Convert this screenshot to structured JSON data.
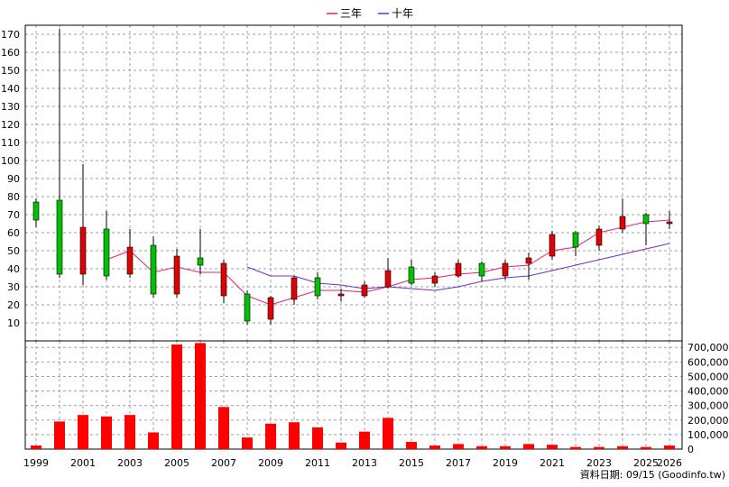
{
  "chart_data": {
    "type": "candlestick",
    "legend": [
      {
        "name": "三年",
        "color": "#e0207a"
      },
      {
        "name": "十年",
        "color": "#7030c0"
      }
    ],
    "legend_position": "top-center",
    "grid": true,
    "price_axis": {
      "min": 0,
      "max": 175,
      "ticks": [
        10,
        20,
        30,
        40,
        50,
        60,
        70,
        80,
        90,
        100,
        110,
        120,
        130,
        140,
        150,
        160,
        170
      ]
    },
    "volume_axis": {
      "min": 0,
      "max": 720000,
      "ticks": [
        "0",
        "100,000",
        "200,000",
        "300,000",
        "400,000",
        "500,000",
        "600,000",
        "700,000"
      ],
      "tick_values": [
        0,
        100000,
        200000,
        300000,
        400000,
        500000,
        600000,
        700000
      ]
    },
    "x_labels": [
      "1999",
      "2001",
      "2003",
      "2005",
      "2007",
      "2009",
      "2011",
      "2013",
      "2015",
      "2017",
      "2019",
      "2021",
      "2023",
      "2025",
      "2026"
    ],
    "candles": [
      {
        "year": "1999",
        "open": 67,
        "high": 79,
        "low": 63,
        "close": 77
      },
      {
        "year": "2000",
        "open": 37,
        "high": 173,
        "low": 35,
        "close": 78
      },
      {
        "year": "2001",
        "open": 63,
        "high": 98,
        "low": 31,
        "close": 37
      },
      {
        "year": "2002",
        "open": 36,
        "high": 72,
        "low": 34,
        "close": 62
      },
      {
        "year": "2003",
        "open": 52,
        "high": 62,
        "low": 35,
        "close": 37
      },
      {
        "year": "2004",
        "open": 26,
        "high": 58,
        "low": 24,
        "close": 53
      },
      {
        "year": "2005",
        "open": 47,
        "high": 51,
        "low": 24,
        "close": 26
      },
      {
        "year": "2006",
        "open": 42,
        "high": 62,
        "low": 37,
        "close": 46
      },
      {
        "year": "2007",
        "open": 43,
        "high": 45,
        "low": 21,
        "close": 25
      },
      {
        "year": "2008",
        "open": 11,
        "high": 28,
        "low": 9,
        "close": 26
      },
      {
        "year": "2009",
        "open": 24,
        "high": 25,
        "low": 9,
        "close": 12
      },
      {
        "year": "2010",
        "open": 35,
        "high": 36,
        "low": 20,
        "close": 23
      },
      {
        "year": "2011",
        "open": 25,
        "high": 38,
        "low": 23,
        "close": 35
      },
      {
        "year": "2012",
        "open": 26,
        "high": 29,
        "low": 22,
        "close": 25
      },
      {
        "year": "2013",
        "open": 31,
        "high": 33,
        "low": 24,
        "close": 25
      },
      {
        "year": "2014",
        "open": 39,
        "high": 46,
        "low": 29,
        "close": 30
      },
      {
        "year": "2015",
        "open": 32,
        "high": 45,
        "low": 31,
        "close": 41
      },
      {
        "year": "2016",
        "open": 36,
        "high": 38,
        "low": 30,
        "close": 32
      },
      {
        "year": "2017",
        "open": 43,
        "high": 45,
        "low": 35,
        "close": 36
      },
      {
        "year": "2018",
        "open": 36,
        "high": 44,
        "low": 33,
        "close": 43
      },
      {
        "year": "2019",
        "open": 43,
        "high": 45,
        "low": 34,
        "close": 36
      },
      {
        "year": "2020",
        "open": 46,
        "high": 49,
        "low": 34,
        "close": 43
      },
      {
        "year": "2021",
        "open": 59,
        "high": 61,
        "low": 45,
        "close": 47
      },
      {
        "year": "2022",
        "open": 52,
        "high": 61,
        "low": 47,
        "close": 60
      },
      {
        "year": "2023",
        "open": 62,
        "high": 64,
        "low": 50,
        "close": 53
      },
      {
        "year": "2024",
        "open": 69,
        "high": 79,
        "low": 60,
        "close": 62
      },
      {
        "year": "2025",
        "open": 65,
        "high": 71,
        "low": 53,
        "close": 70
      },
      {
        "year": "2026",
        "open": 66,
        "high": 72,
        "low": 62,
        "close": 65
      }
    ],
    "volume": [
      25000,
      190000,
      235000,
      225000,
      235000,
      115000,
      720000,
      730000,
      290000,
      80000,
      175000,
      185000,
      150000,
      45000,
      120000,
      215000,
      50000,
      25000,
      35000,
      20000,
      20000,
      35000,
      30000,
      15000,
      15000,
      20000,
      15000,
      25000
    ],
    "ma3": [
      null,
      null,
      null,
      45,
      50,
      38,
      41,
      38,
      38,
      25,
      20,
      24,
      28,
      28,
      27,
      30,
      34,
      35,
      37,
      38,
      41,
      42,
      50,
      52,
      60,
      63,
      66,
      67
    ],
    "ma10": [
      null,
      null,
      null,
      null,
      null,
      null,
      null,
      null,
      null,
      41,
      36,
      36,
      32,
      31,
      29,
      30,
      29,
      28,
      30,
      33,
      35,
      36,
      39,
      42,
      45,
      48,
      51,
      54
    ]
  },
  "credit": "資料日期: 09/15  (Goodinfo.tw)"
}
